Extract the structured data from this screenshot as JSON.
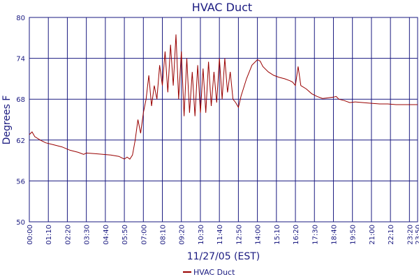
{
  "chart_data": {
    "type": "line",
    "title": "HVAC Duct",
    "x_label": "11/27/05 (EST)",
    "y_label": "Degrees F",
    "x": [
      "00:00",
      "00:10",
      "00:20",
      "00:40",
      "01:00",
      "01:30",
      "02:00",
      "02:30",
      "03:00",
      "03:20",
      "03:30",
      "04:00",
      "04:30",
      "05:00",
      "05:30",
      "05:40",
      "05:50",
      "06:00",
      "06:10",
      "06:20",
      "06:30",
      "06:40",
      "06:50",
      "07:00",
      "07:10",
      "07:20",
      "07:30",
      "07:40",
      "07:50",
      "08:00",
      "08:10",
      "08:20",
      "08:30",
      "08:40",
      "08:50",
      "09:00",
      "09:10",
      "09:20",
      "09:30",
      "09:40",
      "09:50",
      "10:00",
      "10:10",
      "10:20",
      "10:30",
      "10:40",
      "10:50",
      "11:00",
      "11:10",
      "11:20",
      "11:30",
      "11:40",
      "11:50",
      "12:00",
      "12:10",
      "12:20",
      "12:30",
      "12:40",
      "12:50",
      "13:00",
      "13:20",
      "13:40",
      "14:00",
      "14:10",
      "14:20",
      "14:40",
      "15:00",
      "15:20",
      "15:40",
      "16:00",
      "16:10",
      "16:20",
      "16:30",
      "16:40",
      "17:00",
      "17:20",
      "17:40",
      "18:00",
      "18:20",
      "18:40",
      "18:50",
      "19:00",
      "19:20",
      "19:40",
      "20:00",
      "20:30",
      "21:00",
      "21:30",
      "22:00",
      "22:30",
      "23:00",
      "23:30",
      "23:50"
    ],
    "series": [
      {
        "name": "HVAC Duct",
        "color": "#990000",
        "values": [
          62.8,
          63.2,
          62.5,
          62.0,
          61.6,
          61.3,
          61.0,
          60.5,
          60.2,
          59.9,
          60.1,
          60.0,
          59.9,
          59.8,
          59.6,
          59.4,
          59.2,
          59.5,
          59.2,
          59.8,
          62,
          65,
          63,
          66,
          68,
          71.5,
          67,
          70,
          68,
          73,
          70,
          75,
          69,
          76,
          70,
          77.5,
          68,
          75,
          65.5,
          74,
          66,
          72,
          65.5,
          73,
          66,
          72.5,
          66,
          73.5,
          67,
          72,
          67.5,
          74,
          68,
          74,
          69,
          72,
          68,
          67.5,
          66.8,
          68.5,
          71,
          73,
          73.8,
          73.6,
          72.8,
          72,
          71.5,
          71.2,
          71,
          70.7,
          70.5,
          70,
          72.8,
          70,
          69.5,
          68.8,
          68.4,
          68.1,
          68.2,
          68.3,
          68.4,
          68.0,
          67.8,
          67.5,
          67.6,
          67.5,
          67.4,
          67.3,
          67.3,
          67.2,
          67.2,
          67.2,
          67.2
        ]
      }
    ],
    "xlim": [
      "00:00",
      "23:50"
    ],
    "xticks": [
      "00:00",
      "01:10",
      "02:20",
      "03:30",
      "04:40",
      "05:50",
      "07:00",
      "08:10",
      "09:20",
      "10:30",
      "11:40",
      "12:50",
      "14:00",
      "15:10",
      "16:20",
      "17:30",
      "18:40",
      "19:50",
      "21:00",
      "22:10",
      "23:20",
      "23:50"
    ],
    "ylim": [
      50,
      80
    ],
    "yticks": [
      50,
      56,
      62,
      68,
      74,
      80
    ],
    "grid": true,
    "legend": "bottom"
  }
}
